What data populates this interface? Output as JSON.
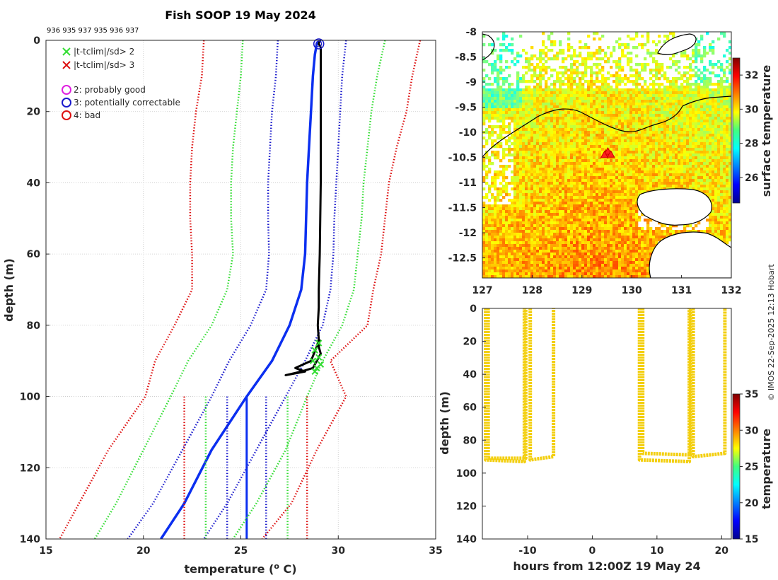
{
  "title": "Fish SOOP 19 May 2024",
  "platform_ids": "936 935 937 935 936 937",
  "copyright": "© IMOS 22-Sep-2025 12:13 Hobart",
  "colors": {
    "red": "#dd1111",
    "green": "#33dd33",
    "blue": "#1a1acc",
    "bright_blue": "#0b2ff0",
    "black": "#000000",
    "magenta": "#e020e0",
    "yellow": "#f3cf10",
    "axis": "#262626"
  },
  "chart_data": [
    {
      "name": "profile",
      "type": "line",
      "title": "Fish SOOP 19 May 2024",
      "xlabel": "temperature (",
      "xlabel_sup": "o",
      "xlabel_end": " C)",
      "ylabel": "depth (m)",
      "xlim": [
        15,
        35
      ],
      "ylim": [
        0,
        140
      ],
      "x_ticks": [
        15,
        20,
        25,
        30,
        35
      ],
      "y_ticks": [
        0,
        20,
        40,
        60,
        80,
        100,
        120,
        140
      ],
      "grid": true,
      "legend": [
        {
          "marker": "x",
          "color": "#33dd33",
          "label": "|t-tclim|/sd> 2"
        },
        {
          "marker": "x",
          "color": "#dd1111",
          "label": "|t-tclim|/sd> 3"
        },
        {
          "marker": "o",
          "color": "#e020e0",
          "label": "2: probably good"
        },
        {
          "marker": "o",
          "color": "#1a1acc",
          "label": "3: potentially correctable"
        },
        {
          "marker": "o",
          "color": "#dd1111",
          "label": "4: bad"
        }
      ],
      "series": [
        {
          "name": "clim_mean",
          "color": "#0b2ff0",
          "style": "solid",
          "width": 3.5,
          "points": [
            [
              29.1,
              0
            ],
            [
              28.9,
              1
            ],
            [
              28.8,
              4
            ],
            [
              28.7,
              10
            ],
            [
              28.6,
              20
            ],
            [
              28.5,
              30
            ],
            [
              28.4,
              40
            ],
            [
              28.35,
              50
            ],
            [
              28.3,
              60
            ],
            [
              28.1,
              70
            ],
            [
              27.5,
              80
            ],
            [
              26.6,
              90
            ],
            [
              25.3,
              100
            ],
            [
              23.5,
              115
            ],
            [
              22.1,
              130
            ],
            [
              20.9,
              140
            ]
          ]
        },
        {
          "name": "clim_mean_lower",
          "color": "#0b2ff0",
          "style": "solid",
          "width": 3,
          "points": [
            [
              25.3,
              100
            ],
            [
              25.3,
              140
            ]
          ]
        },
        {
          "name": "sd1_lo",
          "color": "#1a1acc",
          "style": "dot",
          "width": 2.5,
          "points": [
            [
              26.9,
              0
            ],
            [
              26.8,
              10
            ],
            [
              26.6,
              20
            ],
            [
              26.5,
              30
            ],
            [
              26.4,
              40
            ],
            [
              26.4,
              50
            ],
            [
              26.45,
              60
            ],
            [
              26.3,
              70
            ],
            [
              25.5,
              80
            ],
            [
              24.4,
              90
            ],
            [
              23.5,
              100
            ],
            [
              22.0,
              115
            ],
            [
              20.5,
              130
            ],
            [
              19.2,
              140
            ]
          ]
        },
        {
          "name": "sd1_lo_const",
          "color": "#1a1acc",
          "style": "dot",
          "width": 2.5,
          "points": [
            [
              24.3,
              100
            ],
            [
              24.3,
              140
            ]
          ]
        },
        {
          "name": "sd1_hi",
          "color": "#1a1acc",
          "style": "dot",
          "width": 2.5,
          "points": [
            [
              30.4,
              0
            ],
            [
              30.2,
              10
            ],
            [
              30.1,
              20
            ],
            [
              30.0,
              30
            ],
            [
              29.9,
              40
            ],
            [
              29.8,
              50
            ],
            [
              29.75,
              60
            ],
            [
              29.6,
              70
            ],
            [
              29.2,
              80
            ],
            [
              28.3,
              90
            ],
            [
              27.3,
              100
            ],
            [
              25.8,
              115
            ],
            [
              24.3,
              130
            ],
            [
              23.1,
              140
            ]
          ]
        },
        {
          "name": "sd1_hi_const",
          "color": "#1a1acc",
          "style": "dot",
          "width": 2.5,
          "points": [
            [
              26.3,
              100
            ],
            [
              26.3,
              140
            ]
          ]
        },
        {
          "name": "sd2_lo",
          "color": "#33dd33",
          "style": "dot",
          "width": 2.5,
          "points": [
            [
              25.1,
              0
            ],
            [
              25.0,
              10
            ],
            [
              24.8,
              20
            ],
            [
              24.6,
              30
            ],
            [
              24.5,
              40
            ],
            [
              24.5,
              50
            ],
            [
              24.6,
              60
            ],
            [
              24.3,
              70
            ],
            [
              23.5,
              80
            ],
            [
              22.3,
              90
            ],
            [
              21.4,
              100
            ],
            [
              20.0,
              115
            ],
            [
              18.6,
              130
            ],
            [
              17.5,
              140
            ]
          ]
        },
        {
          "name": "sd2_lo_const",
          "color": "#33dd33",
          "style": "dot",
          "width": 2.5,
          "points": [
            [
              23.2,
              100
            ],
            [
              23.2,
              140
            ]
          ]
        },
        {
          "name": "sd2_hi",
          "color": "#33dd33",
          "style": "dot",
          "width": 2.5,
          "points": [
            [
              32.4,
              0
            ],
            [
              32.0,
              10
            ],
            [
              31.7,
              20
            ],
            [
              31.5,
              30
            ],
            [
              31.3,
              40
            ],
            [
              31.2,
              50
            ],
            [
              31.0,
              60
            ],
            [
              30.8,
              70
            ],
            [
              30.2,
              80
            ],
            [
              29.2,
              90
            ],
            [
              28.4,
              100
            ],
            [
              27.3,
              115
            ],
            [
              25.8,
              130
            ],
            [
              24.6,
              140
            ]
          ]
        },
        {
          "name": "sd2_hi_const",
          "color": "#33dd33",
          "style": "dot",
          "width": 2.5,
          "points": [
            [
              27.4,
              100
            ],
            [
              27.4,
              140
            ]
          ]
        },
        {
          "name": "sd3_lo",
          "color": "#dd1111",
          "style": "dot",
          "width": 2.5,
          "points": [
            [
              23.1,
              0
            ],
            [
              23.0,
              10
            ],
            [
              22.7,
              20
            ],
            [
              22.5,
              30
            ],
            [
              22.4,
              40
            ],
            [
              22.4,
              50
            ],
            [
              22.5,
              60
            ],
            [
              22.5,
              70
            ],
            [
              21.6,
              80
            ],
            [
              20.6,
              90
            ],
            [
              20.1,
              100
            ],
            [
              18.2,
              115
            ],
            [
              16.7,
              130
            ],
            [
              15.7,
              140
            ]
          ]
        },
        {
          "name": "sd3_lo_const",
          "color": "#dd1111",
          "style": "dot",
          "width": 2.5,
          "points": [
            [
              22.1,
              100
            ],
            [
              22.1,
              140
            ]
          ]
        },
        {
          "name": "sd3_hi",
          "color": "#dd1111",
          "style": "dot",
          "width": 2.5,
          "points": [
            [
              34.2,
              0
            ],
            [
              33.8,
              10
            ],
            [
              33.5,
              20
            ],
            [
              33.0,
              30
            ],
            [
              32.6,
              40
            ],
            [
              32.4,
              50
            ],
            [
              32.2,
              60
            ],
            [
              31.8,
              70
            ],
            [
              31.5,
              80
            ],
            [
              29.6,
              90
            ],
            [
              30.4,
              100
            ],
            [
              28.9,
              115
            ],
            [
              27.6,
              130
            ],
            [
              26.1,
              140
            ]
          ]
        },
        {
          "name": "sd3_hi_const",
          "color": "#dd1111",
          "style": "dot",
          "width": 2.5,
          "points": [
            [
              28.4,
              100
            ],
            [
              28.4,
              140
            ]
          ]
        },
        {
          "name": "observed_profile",
          "color": "#000000",
          "style": "solid",
          "width": 3,
          "points": [
            [
              29.05,
              0
            ],
            [
              29.0,
              1
            ],
            [
              29.1,
              2
            ],
            [
              29.1,
              10
            ],
            [
              29.1,
              20
            ],
            [
              29.1,
              40
            ],
            [
              29.05,
              60
            ],
            [
              29.0,
              70
            ],
            [
              29.0,
              75
            ],
            [
              28.95,
              80
            ],
            [
              29.0,
              84
            ],
            [
              28.9,
              86
            ],
            [
              28.6,
              90
            ],
            [
              27.8,
              92
            ],
            [
              28.3,
              93
            ],
            [
              27.3,
              94
            ],
            [
              28.1,
              93
            ],
            [
              28.7,
              92
            ],
            [
              28.9,
              90
            ],
            [
              29.1,
              88
            ],
            [
              29.0,
              86
            ],
            [
              29.05,
              84
            ]
          ]
        }
      ],
      "flag_markers": {
        "green_x": [
          [
            29.0,
            85
          ],
          [
            28.8,
            87
          ],
          [
            29.0,
            89
          ],
          [
            28.7,
            90
          ],
          [
            28.9,
            92
          ],
          [
            28.8,
            93
          ],
          [
            29.1,
            91
          ]
        ],
        "blue_circle": [
          [
            29.0,
            1
          ]
        ]
      }
    },
    {
      "name": "map",
      "type": "heatmap",
      "xlim": [
        127,
        132
      ],
      "ylim": [
        -12.9,
        -8
      ],
      "x_ticks": [
        127,
        128,
        129,
        130,
        131,
        132
      ],
      "y_ticks": [
        -8,
        -8.5,
        -9,
        -9.5,
        -10,
        -10.5,
        -11,
        -11.5,
        -12,
        -12.5
      ],
      "colorbar_label": "surface temperature",
      "colorbar_ticks": [
        26,
        28,
        30,
        32
      ],
      "colorbar_range": [
        24.5,
        33
      ],
      "float_locations": [
        [
          129.48,
          -10.42
        ],
        [
          129.52,
          -10.38
        ],
        [
          129.58,
          -10.44
        ],
        [
          129.45,
          -10.45
        ]
      ]
    },
    {
      "name": "time_depth",
      "type": "scatter",
      "xlabel": "hours from 12:00Z 19 May 24",
      "ylabel": "depth (m)",
      "xlim": [
        -17,
        21.5
      ],
      "ylim": [
        0,
        140
      ],
      "x_ticks": [
        -10,
        0,
        10,
        20
      ],
      "y_ticks": [
        0,
        20,
        40,
        60,
        80,
        100,
        120,
        140
      ],
      "colorbar_label": "temperature",
      "colorbar_ticks": [
        15,
        20,
        25,
        30,
        35
      ],
      "colorbar_range": [
        15,
        35
      ],
      "traces": [
        [
          [
            -16.5,
            0
          ],
          [
            -16.5,
            92
          ],
          [
            -10.5,
            93
          ],
          [
            -10.5,
            0
          ]
        ],
        [
          [
            -16.1,
            0
          ],
          [
            -16.1,
            91
          ],
          [
            -10.3,
            91
          ],
          [
            -10.3,
            0
          ]
        ],
        [
          [
            -9.6,
            0
          ],
          [
            -9.6,
            92
          ],
          [
            -6,
            90
          ],
          [
            -6,
            0
          ]
        ],
        [
          [
            7.3,
            0
          ],
          [
            7.3,
            92
          ],
          [
            15,
            93
          ],
          [
            15,
            0
          ]
        ],
        [
          [
            7.8,
            0
          ],
          [
            7.8,
            88
          ],
          [
            15.2,
            89
          ],
          [
            15.2,
            0
          ]
        ],
        [
          [
            15.6,
            0
          ],
          [
            15.6,
            90
          ],
          [
            20.5,
            88
          ],
          [
            20.5,
            0
          ]
        ]
      ]
    }
  ]
}
